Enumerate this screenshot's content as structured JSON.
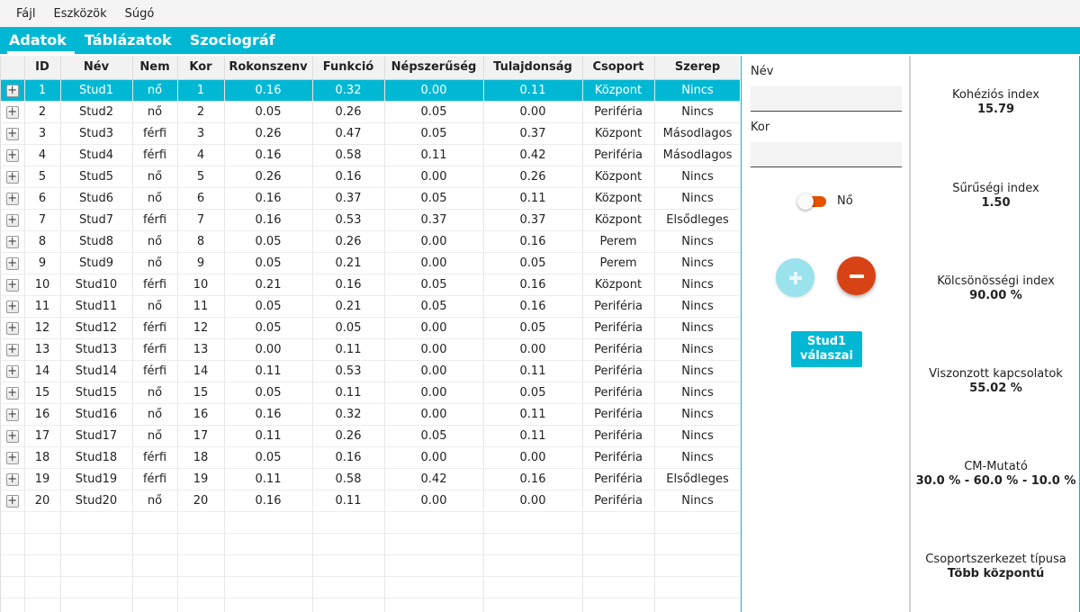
{
  "menu": [
    "Fájl",
    "Eszközök",
    "Súgó"
  ],
  "tabs": [
    {
      "label": "Adatok",
      "active": true
    },
    {
      "label": "Táblázatok",
      "active": false
    },
    {
      "label": "Szociográf",
      "active": false
    }
  ],
  "table": {
    "columns": [
      "",
      "ID",
      "Név",
      "Nem",
      "Kor",
      "Rokonszenv",
      "Funkció",
      "Népszerűség",
      "Tulajdonság",
      "Csoport",
      "Szerep"
    ],
    "expander_symbol": "+",
    "selected_index": 0,
    "empty_rows": 5,
    "rows": [
      [
        "1",
        "Stud1",
        "nő",
        "1",
        "0.16",
        "0.32",
        "0.00",
        "0.11",
        "Központ",
        "Nincs"
      ],
      [
        "2",
        "Stud2",
        "nő",
        "2",
        "0.05",
        "0.26",
        "0.05",
        "0.00",
        "Periféria",
        "Nincs"
      ],
      [
        "3",
        "Stud3",
        "férfi",
        "3",
        "0.26",
        "0.47",
        "0.05",
        "0.37",
        "Központ",
        "Másodlagos"
      ],
      [
        "4",
        "Stud4",
        "férfi",
        "4",
        "0.16",
        "0.58",
        "0.11",
        "0.42",
        "Periféria",
        "Másodlagos"
      ],
      [
        "5",
        "Stud5",
        "nő",
        "5",
        "0.26",
        "0.16",
        "0.00",
        "0.26",
        "Központ",
        "Nincs"
      ],
      [
        "6",
        "Stud6",
        "nő",
        "6",
        "0.16",
        "0.37",
        "0.05",
        "0.11",
        "Központ",
        "Nincs"
      ],
      [
        "7",
        "Stud7",
        "férfi",
        "7",
        "0.16",
        "0.53",
        "0.37",
        "0.37",
        "Központ",
        "Elsődleges"
      ],
      [
        "8",
        "Stud8",
        "nő",
        "8",
        "0.05",
        "0.26",
        "0.00",
        "0.16",
        "Perem",
        "Nincs"
      ],
      [
        "9",
        "Stud9",
        "nő",
        "9",
        "0.05",
        "0.21",
        "0.00",
        "0.05",
        "Perem",
        "Nincs"
      ],
      [
        "10",
        "Stud10",
        "férfi",
        "10",
        "0.21",
        "0.16",
        "0.05",
        "0.16",
        "Központ",
        "Nincs"
      ],
      [
        "11",
        "Stud11",
        "nő",
        "11",
        "0.05",
        "0.21",
        "0.05",
        "0.16",
        "Periféria",
        "Nincs"
      ],
      [
        "12",
        "Stud12",
        "férfi",
        "12",
        "0.05",
        "0.05",
        "0.00",
        "0.05",
        "Periféria",
        "Nincs"
      ],
      [
        "13",
        "Stud13",
        "férfi",
        "13",
        "0.00",
        "0.11",
        "0.00",
        "0.00",
        "Periféria",
        "Nincs"
      ],
      [
        "14",
        "Stud14",
        "férfi",
        "14",
        "0.11",
        "0.53",
        "0.00",
        "0.11",
        "Periféria",
        "Nincs"
      ],
      [
        "15",
        "Stud15",
        "nő",
        "15",
        "0.05",
        "0.11",
        "0.00",
        "0.05",
        "Periféria",
        "Nincs"
      ],
      [
        "16",
        "Stud16",
        "nő",
        "16",
        "0.16",
        "0.32",
        "0.00",
        "0.11",
        "Periféria",
        "Nincs"
      ],
      [
        "17",
        "Stud17",
        "nő",
        "17",
        "0.11",
        "0.26",
        "0.05",
        "0.11",
        "Periféria",
        "Nincs"
      ],
      [
        "18",
        "Stud18",
        "férfi",
        "18",
        "0.05",
        "0.16",
        "0.00",
        "0.00",
        "Periféria",
        "Nincs"
      ],
      [
        "19",
        "Stud19",
        "férfi",
        "19",
        "0.11",
        "0.58",
        "0.42",
        "0.16",
        "Periféria",
        "Elsődleges"
      ],
      [
        "20",
        "Stud20",
        "nő",
        "20",
        "0.16",
        "0.11",
        "0.00",
        "0.00",
        "Periféria",
        "Nincs"
      ]
    ]
  },
  "form": {
    "name_label": "Név",
    "name_value": "",
    "age_label": "Kor",
    "age_value": "",
    "gender_toggle_label": "Nő",
    "gender_toggle_on": true,
    "answers_button_line1": "Stud1",
    "answers_button_line2": "válaszai"
  },
  "stats": [
    {
      "label": "Kohéziós index",
      "value": "15.79"
    },
    {
      "label": "Sűrűségi index",
      "value": "1.50"
    },
    {
      "label": "Kölcsönösségi index",
      "value": "90.00 %"
    },
    {
      "label": "Viszonzott kapcsolatok",
      "value": "55.02 %"
    },
    {
      "label": "CM-Mutató",
      "value": "30.0 % - 60.0 % - 10.0 %"
    },
    {
      "label": "Csoportszerkezet típusa",
      "value": "Több központú"
    }
  ],
  "colors": {
    "accent": "#00b8d4",
    "remove": "#d84315",
    "add_disabled": "#9ae2ec",
    "toggle": "#e65100"
  },
  "icons": {
    "add": "plus-icon",
    "remove": "minus-icon",
    "row_expander": "expand-plus-icon"
  }
}
